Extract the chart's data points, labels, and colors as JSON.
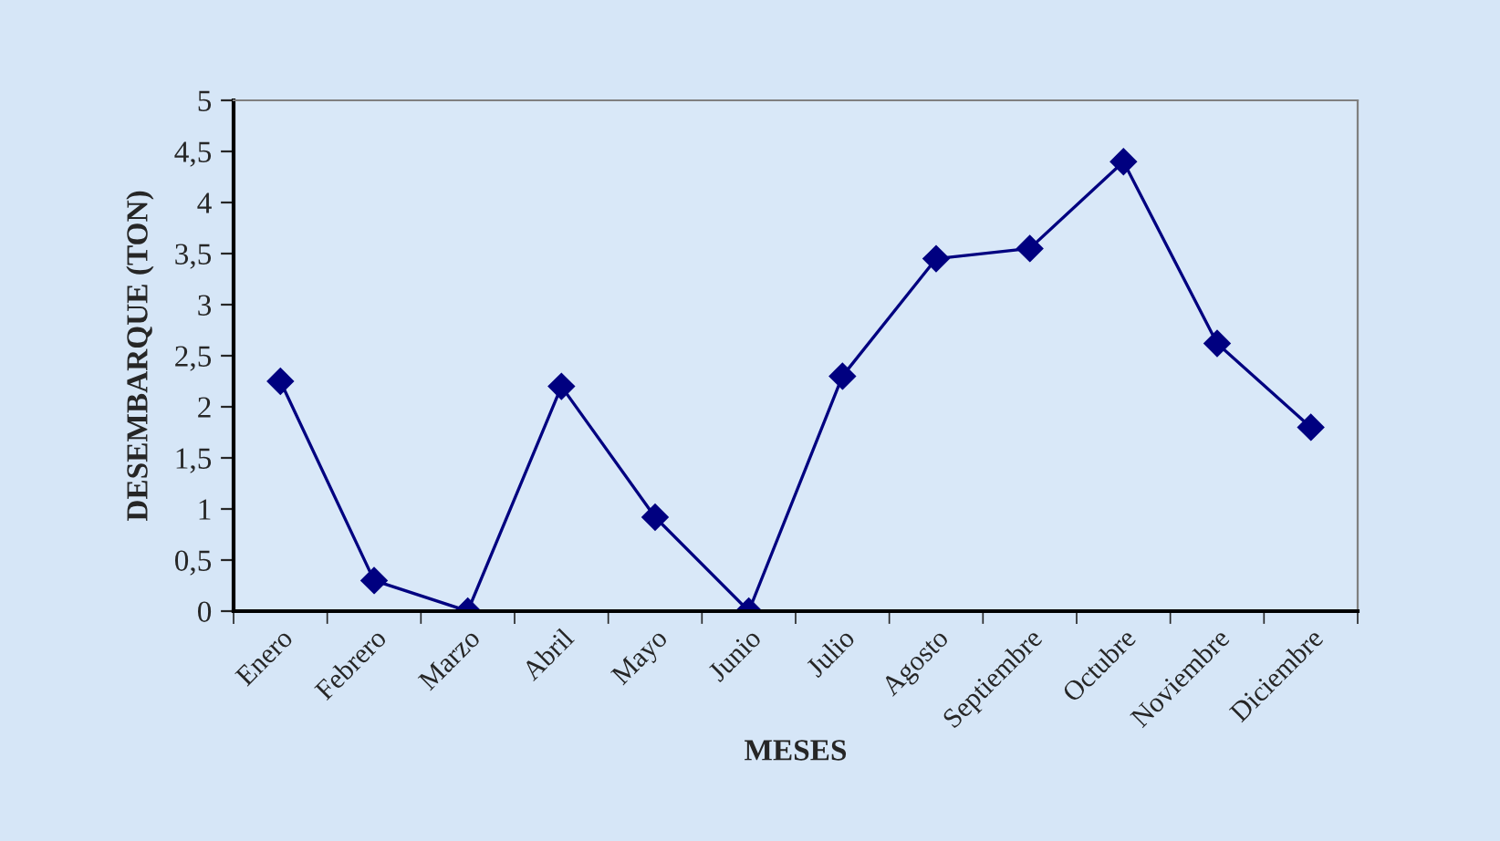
{
  "chart_data": {
    "type": "line",
    "categories": [
      "Enero",
      "Febrero",
      "Marzo",
      "Abril",
      "Mayo",
      "Junio",
      "Julio",
      "Agosto",
      "Septiembre",
      "Octubre",
      "Noviembre",
      "Diciembre"
    ],
    "series": [
      {
        "color": "#000080",
        "values": [
          2.25,
          0.3,
          0,
          2.2,
          0.92,
          0,
          2.3,
          3.45,
          3.55,
          4.4,
          2.62,
          1.8
        ]
      }
    ],
    "xlabel": "MESES",
    "ylabel": "DESEMBARQUE (TON)",
    "ylim": [
      0,
      5
    ],
    "yticks": [
      0,
      {
        "value": 0.5,
        "label": "0,5"
      },
      1,
      {
        "value": 1.5,
        "label": "1,5"
      },
      2,
      {
        "value": 2.5,
        "label": "2,5"
      },
      3,
      {
        "value": 3.5,
        "label": "3,5"
      },
      4,
      {
        "value": 4.5,
        "label": "4,5"
      },
      5
    ],
    "marker": "diamond",
    "line_style": "solid",
    "grid": false,
    "legend": false
  }
}
